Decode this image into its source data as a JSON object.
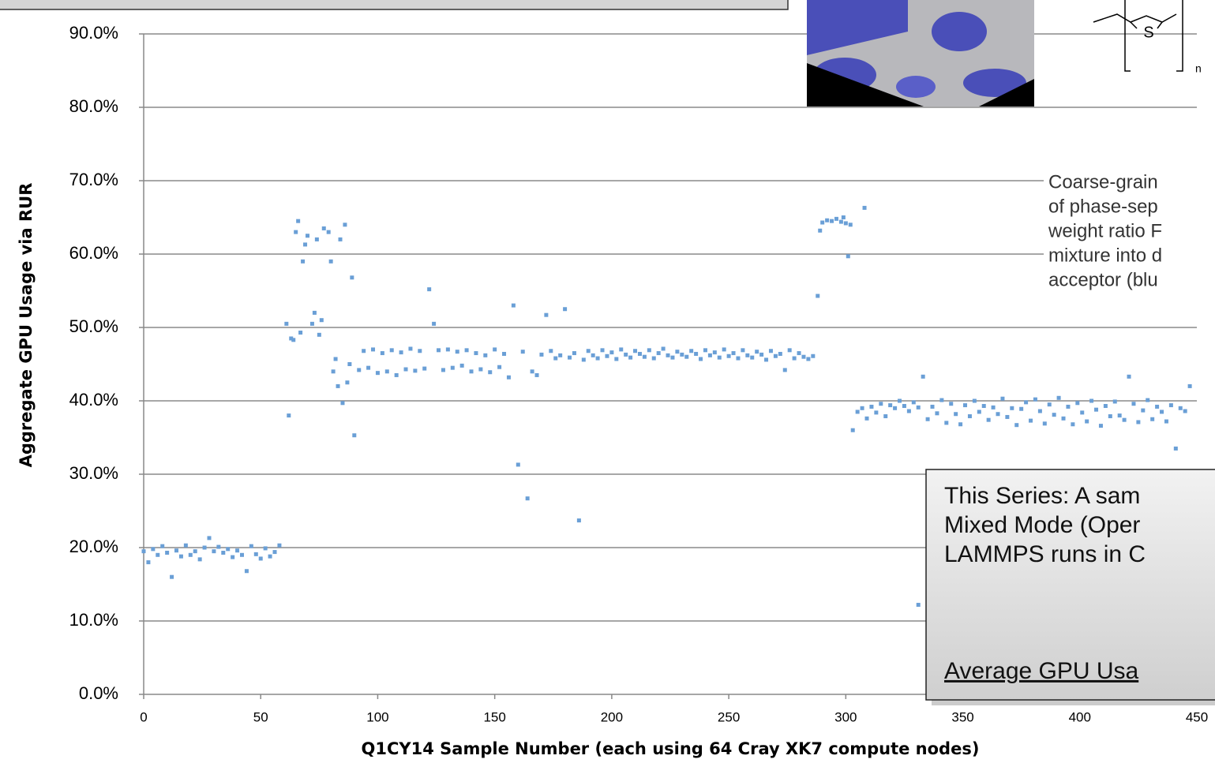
{
  "chart_data": {
    "type": "scatter",
    "y_label": "Aggregate GPU Usage via RUR",
    "x_label": "Q1CY14 Sample Number (each using 64 Cray XK7 compute nodes)",
    "xlim": [
      0,
      450
    ],
    "xticks": [
      0,
      50,
      100,
      150,
      200,
      250,
      300,
      350,
      400,
      450
    ],
    "ylim": [
      0,
      90
    ],
    "yticks": [
      {
        "value": 0,
        "label": "0.0%"
      },
      {
        "value": 10,
        "label": "10.0%"
      },
      {
        "value": 20,
        "label": "20.0%"
      },
      {
        "value": 30,
        "label": "30.0%"
      },
      {
        "value": 40,
        "label": "40.0%"
      },
      {
        "value": 50,
        "label": "50.0%"
      },
      {
        "value": 60,
        "label": "60.0%"
      },
      {
        "value": 70,
        "label": "70.0%"
      },
      {
        "value": 80,
        "label": "80.0%"
      },
      {
        "value": 90,
        "label": "90.0%"
      }
    ],
    "grid": true,
    "color": "#6a9fd6",
    "x": [
      0,
      2,
      4,
      6,
      8,
      10,
      12,
      14,
      16,
      18,
      20,
      22,
      24,
      26,
      28,
      30,
      32,
      34,
      36,
      38,
      40,
      42,
      44,
      46,
      48,
      50,
      52,
      54,
      56,
      58,
      61,
      62,
      63,
      64,
      65,
      66,
      67,
      68,
      69,
      70,
      72,
      73,
      74,
      75,
      76,
      77,
      79,
      80,
      81,
      82,
      83,
      84,
      85,
      86,
      87,
      88,
      89,
      90,
      92,
      94,
      96,
      98,
      100,
      102,
      104,
      106,
      108,
      110,
      112,
      114,
      116,
      118,
      120,
      122,
      124,
      126,
      128,
      130,
      132,
      134,
      136,
      138,
      140,
      142,
      144,
      146,
      148,
      150,
      152,
      154,
      156,
      158,
      160,
      162,
      164,
      166,
      168,
      170,
      172,
      174,
      176,
      178,
      180,
      182,
      184,
      186,
      188,
      190,
      192,
      194,
      196,
      198,
      200,
      202,
      204,
      206,
      208,
      210,
      212,
      214,
      216,
      218,
      220,
      222,
      224,
      226,
      228,
      230,
      232,
      234,
      236,
      238,
      240,
      242,
      244,
      246,
      248,
      250,
      252,
      254,
      256,
      258,
      260,
      262,
      264,
      266,
      268,
      270,
      272,
      274,
      276,
      278,
      280,
      282,
      284,
      286,
      288,
      289,
      290,
      292,
      294,
      296,
      298,
      299,
      300,
      301,
      302,
      308,
      303,
      305,
      307,
      309,
      311,
      313,
      315,
      317,
      319,
      321,
      323,
      325,
      327,
      329,
      331,
      333,
      335,
      337,
      339,
      341,
      343,
      345,
      347,
      349,
      351,
      353,
      355,
      357,
      359,
      361,
      363,
      365,
      367,
      369,
      371,
      373,
      375,
      377,
      379,
      381,
      383,
      385,
      387,
      389,
      391,
      393,
      395,
      397,
      399,
      401,
      403,
      405,
      407,
      409,
      411,
      413,
      415,
      417,
      419,
      421,
      423,
      425,
      427,
      429,
      431,
      433,
      435,
      437,
      439,
      441,
      443,
      445,
      447,
      331
    ],
    "values": [
      19.5,
      18,
      19.8,
      19,
      20.2,
      19.3,
      16,
      19.6,
      18.8,
      20.3,
      19,
      19.5,
      18.4,
      20,
      21.3,
      19.5,
      20.1,
      19.3,
      19.8,
      18.7,
      19.6,
      19,
      16.8,
      20.2,
      19.1,
      18.5,
      19.9,
      18.8,
      19.4,
      20.3,
      50.5,
      38,
      48.5,
      48.3,
      63,
      64.5,
      49.3,
      59,
      61.3,
      62.5,
      50.5,
      52,
      62,
      49,
      51,
      63.5,
      63,
      59,
      44,
      45.7,
      42,
      62,
      39.7,
      64,
      42.5,
      45,
      56.8,
      35.3,
      44.2,
      46.8,
      44.5,
      47,
      43.8,
      46.5,
      44,
      46.9,
      43.5,
      46.6,
      44.3,
      47.1,
      44.1,
      46.8,
      44.4,
      55.2,
      50.5,
      46.9,
      44.2,
      47,
      44.5,
      46.7,
      44.8,
      46.9,
      44,
      46.5,
      44.3,
      46.2,
      43.9,
      47,
      44.6,
      46.4,
      43.2,
      53,
      31.3,
      46.7,
      26.7,
      44,
      43.5,
      46.3,
      51.7,
      46.8,
      45.8,
      46.2,
      52.5,
      45.9,
      46.5,
      23.7,
      45.6,
      46.8,
      46.2,
      45.8,
      46.9,
      46.1,
      46.6,
      45.7,
      47,
      46.3,
      45.9,
      46.8,
      46.4,
      46,
      46.9,
      45.8,
      46.5,
      47.1,
      46.2,
      45.9,
      46.7,
      46.3,
      46,
      46.8,
      46.4,
      45.7,
      46.9,
      46.2,
      46.6,
      45.9,
      47,
      46.1,
      46.5,
      45.8,
      46.9,
      46.2,
      45.9,
      46.7,
      46.3,
      45.6,
      46.8,
      46.1,
      46.4,
      44.2,
      46.9,
      45.8,
      46.5,
      46,
      45.7,
      46.1,
      54.3,
      63.2,
      64.3,
      64.6,
      64.5,
      64.8,
      64.4,
      65,
      64.2,
      59.7,
      64,
      66.3,
      36,
      38.5,
      39,
      37.6,
      39.2,
      38.4,
      39.6,
      37.9,
      39.4,
      39,
      40,
      39.3,
      38.6,
      39.8,
      39.1,
      43.3,
      37.5,
      39.2,
      38.3,
      40.1,
      37,
      39.6,
      38.2,
      36.8,
      39.4,
      37.9,
      40,
      38.5,
      39.3,
      37.4,
      39.1,
      38.2,
      40.3,
      37.8,
      39,
      36.7,
      38.9,
      39.8,
      37.3,
      40.2,
      38.6,
      36.9,
      39.5,
      38.1,
      40.4,
      37.6,
      39.2,
      36.8,
      39.7,
      38.4,
      37.2,
      40,
      38.8,
      36.6,
      39.3,
      37.9,
      39.9,
      38,
      37.4,
      43.3,
      39.6,
      37.1,
      38.7,
      40.1,
      37.5,
      39.2,
      38.5,
      37.2,
      39.4,
      33.5,
      39,
      38.6,
      42,
      12.2
    ],
    "caption": [
      "Coarse-grain",
      "of phase-sep",
      "weight ratio F",
      "mixture into d",
      "acceptor (blu"
    ],
    "note": [
      "This Series: A sam",
      "Mixed Mode (Oper",
      "LAMMPS runs in C"
    ],
    "note_emphasis": "Average GPU Usa",
    "structure_labels": [
      "S",
      "n"
    ]
  }
}
